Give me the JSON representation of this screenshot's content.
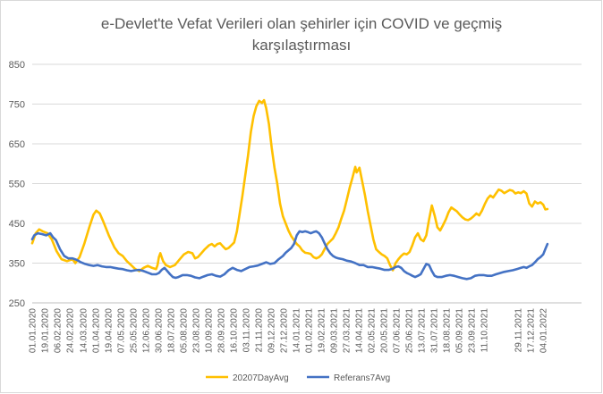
{
  "chart_data": {
    "type": "line",
    "title_line1": "e-Devlet'te Vefat Verileri olan şehirler için COVID ve geçmiş",
    "title_line2": "karşılaştırması",
    "xlabel": "",
    "ylabel": "",
    "ylim": [
      250,
      850
    ],
    "yticks": [
      "250",
      "350",
      "450",
      "550",
      "650",
      "750",
      "850"
    ],
    "x_start": "2020-01-01",
    "x_end": "2022-02-28",
    "xtick_labels": [
      "01.01.2020",
      "19.01.2020",
      "06.02.2020",
      "24.02.2020",
      "14.03.2020",
      "01.04.2020",
      "19.04.2020",
      "07.05.2020",
      "25.05.2020",
      "12.06.2020",
      "30.06.2020",
      "18.07.2020",
      "05.08.2020",
      "23.08.2020",
      "10.09.2020",
      "28.09.2020",
      "16.10.2020",
      "03.11.2020",
      "21.11.2020",
      "09.12.2020",
      "27.12.2020",
      "14.01.2021",
      "01.02.2021",
      "19.02.2021",
      "09.03.2021",
      "27.03.2021",
      "14.04.2021",
      "02.05.2021",
      "20.05.2021",
      "07.06.2021",
      "25.06.2021",
      "13.07.2021",
      "31.07.2021",
      "18.08.2021",
      "05.09.2021",
      "23.09.2021",
      "11.10.2021",
      "29.11.2021",
      "17.12.2021",
      "04.01.2022"
    ],
    "grid": true,
    "legend_position": "bottom-center",
    "series": [
      {
        "name": "20207DayAvg",
        "color": "#FFC000",
        "points": [
          [
            0,
            400
          ],
          [
            5,
            425
          ],
          [
            10,
            435
          ],
          [
            15,
            430
          ],
          [
            22,
            425
          ],
          [
            28,
            410
          ],
          [
            35,
            380
          ],
          [
            42,
            360
          ],
          [
            50,
            355
          ],
          [
            58,
            360
          ],
          [
            62,
            350
          ],
          [
            68,
            365
          ],
          [
            75,
            400
          ],
          [
            82,
            440
          ],
          [
            88,
            472
          ],
          [
            92,
            482
          ],
          [
            97,
            475
          ],
          [
            102,
            455
          ],
          [
            110,
            420
          ],
          [
            118,
            390
          ],
          [
            124,
            375
          ],
          [
            130,
            368
          ],
          [
            136,
            355
          ],
          [
            142,
            345
          ],
          [
            148,
            335
          ],
          [
            154,
            330
          ],
          [
            160,
            338
          ],
          [
            166,
            343
          ],
          [
            172,
            338
          ],
          [
            178,
            335
          ],
          [
            180,
            345
          ],
          [
            182,
            365
          ],
          [
            184,
            375
          ],
          [
            188,
            355
          ],
          [
            192,
            345
          ],
          [
            198,
            340
          ],
          [
            205,
            345
          ],
          [
            212,
            360
          ],
          [
            218,
            372
          ],
          [
            224,
            378
          ],
          [
            230,
            375
          ],
          [
            234,
            362
          ],
          [
            238,
            365
          ],
          [
            243,
            375
          ],
          [
            248,
            385
          ],
          [
            254,
            395
          ],
          [
            258,
            398
          ],
          [
            262,
            392
          ],
          [
            266,
            398
          ],
          [
            270,
            400
          ],
          [
            274,
            392
          ],
          [
            278,
            385
          ],
          [
            282,
            388
          ],
          [
            286,
            395
          ],
          [
            290,
            402
          ],
          [
            294,
            430
          ],
          [
            298,
            475
          ],
          [
            302,
            520
          ],
          [
            306,
            570
          ],
          [
            310,
            620
          ],
          [
            314,
            680
          ],
          [
            318,
            720
          ],
          [
            322,
            745
          ],
          [
            326,
            758
          ],
          [
            330,
            753
          ],
          [
            333,
            760
          ],
          [
            336,
            740
          ],
          [
            340,
            700
          ],
          [
            344,
            640
          ],
          [
            348,
            590
          ],
          [
            352,
            550
          ],
          [
            356,
            500
          ],
          [
            360,
            468
          ],
          [
            364,
            450
          ],
          [
            368,
            432
          ],
          [
            372,
            418
          ],
          [
            376,
            408
          ],
          [
            380,
            398
          ],
          [
            384,
            392
          ],
          [
            388,
            382
          ],
          [
            392,
            376
          ],
          [
            396,
            375
          ],
          [
            400,
            373
          ],
          [
            404,
            365
          ],
          [
            408,
            362
          ],
          [
            412,
            365
          ],
          [
            416,
            372
          ],
          [
            420,
            385
          ],
          [
            424,
            398
          ],
          [
            428,
            405
          ],
          [
            432,
            412
          ],
          [
            436,
            425
          ],
          [
            440,
            440
          ],
          [
            444,
            462
          ],
          [
            448,
            482
          ],
          [
            452,
            510
          ],
          [
            456,
            540
          ],
          [
            460,
            565
          ],
          [
            464,
            592
          ],
          [
            466,
            578
          ],
          [
            470,
            590
          ],
          [
            474,
            555
          ],
          [
            478,
            520
          ],
          [
            482,
            480
          ],
          [
            486,
            445
          ],
          [
            490,
            410
          ],
          [
            494,
            385
          ],
          [
            498,
            378
          ],
          [
            502,
            372
          ],
          [
            506,
            368
          ],
          [
            510,
            362
          ],
          [
            514,
            345
          ],
          [
            518,
            332
          ],
          [
            522,
            350
          ],
          [
            526,
            360
          ],
          [
            530,
            368
          ],
          [
            534,
            374
          ],
          [
            538,
            372
          ],
          [
            542,
            378
          ],
          [
            546,
            395
          ],
          [
            550,
            415
          ],
          [
            554,
            425
          ],
          [
            558,
            410
          ],
          [
            562,
            405
          ],
          [
            566,
            420
          ],
          [
            570,
            460
          ],
          [
            574,
            495
          ],
          [
            578,
            470
          ],
          [
            582,
            440
          ],
          [
            586,
            432
          ],
          [
            590,
            445
          ],
          [
            594,
            460
          ],
          [
            598,
            478
          ],
          [
            602,
            490
          ],
          [
            606,
            485
          ],
          [
            610,
            480
          ],
          [
            614,
            472
          ],
          [
            618,
            465
          ],
          [
            622,
            460
          ],
          [
            626,
            458
          ],
          [
            630,
            462
          ],
          [
            634,
            468
          ],
          [
            638,
            475
          ],
          [
            642,
            470
          ],
          [
            646,
            482
          ],
          [
            650,
            498
          ],
          [
            654,
            512
          ],
          [
            658,
            520
          ],
          [
            662,
            515
          ],
          [
            666,
            525
          ],
          [
            670,
            535
          ],
          [
            674,
            532
          ],
          [
            678,
            526
          ],
          [
            682,
            530
          ],
          [
            686,
            534
          ],
          [
            690,
            532
          ],
          [
            694,
            525
          ],
          [
            698,
            528
          ],
          [
            702,
            526
          ],
          [
            706,
            531
          ],
          [
            710,
            525
          ],
          [
            714,
            500
          ],
          [
            718,
            492
          ],
          [
            722,
            505
          ],
          [
            726,
            500
          ],
          [
            730,
            503
          ],
          [
            734,
            497
          ],
          [
            737,
            485
          ],
          [
            740,
            486
          ]
        ]
      },
      {
        "name": "Referans7Avg",
        "color": "#4472C4",
        "points": [
          [
            0,
            410
          ],
          [
            3,
            420
          ],
          [
            8,
            425
          ],
          [
            14,
            423
          ],
          [
            20,
            420
          ],
          [
            26,
            425
          ],
          [
            30,
            415
          ],
          [
            34,
            408
          ],
          [
            40,
            385
          ],
          [
            46,
            368
          ],
          [
            52,
            362
          ],
          [
            58,
            362
          ],
          [
            64,
            358
          ],
          [
            70,
            352
          ],
          [
            76,
            348
          ],
          [
            82,
            345
          ],
          [
            88,
            343
          ],
          [
            94,
            345
          ],
          [
            100,
            342
          ],
          [
            106,
            340
          ],
          [
            112,
            340
          ],
          [
            118,
            338
          ],
          [
            124,
            336
          ],
          [
            130,
            335
          ],
          [
            136,
            332
          ],
          [
            142,
            330
          ],
          [
            148,
            332
          ],
          [
            154,
            333
          ],
          [
            160,
            330
          ],
          [
            166,
            326
          ],
          [
            172,
            322
          ],
          [
            178,
            322
          ],
          [
            182,
            325
          ],
          [
            186,
            333
          ],
          [
            190,
            338
          ],
          [
            194,
            330
          ],
          [
            198,
            322
          ],
          [
            202,
            315
          ],
          [
            206,
            313
          ],
          [
            210,
            315
          ],
          [
            216,
            320
          ],
          [
            222,
            320
          ],
          [
            228,
            318
          ],
          [
            234,
            314
          ],
          [
            240,
            312
          ],
          [
            246,
            316
          ],
          [
            252,
            320
          ],
          [
            258,
            322
          ],
          [
            264,
            318
          ],
          [
            270,
            316
          ],
          [
            276,
            322
          ],
          [
            282,
            332
          ],
          [
            288,
            338
          ],
          [
            294,
            333
          ],
          [
            300,
            330
          ],
          [
            306,
            335
          ],
          [
            312,
            340
          ],
          [
            318,
            342
          ],
          [
            324,
            344
          ],
          [
            330,
            348
          ],
          [
            336,
            352
          ],
          [
            342,
            348
          ],
          [
            348,
            350
          ],
          [
            354,
            360
          ],
          [
            360,
            368
          ],
          [
            364,
            376
          ],
          [
            368,
            382
          ],
          [
            372,
            388
          ],
          [
            376,
            398
          ],
          [
            380,
            420
          ],
          [
            384,
            430
          ],
          [
            388,
            428
          ],
          [
            392,
            430
          ],
          [
            396,
            428
          ],
          [
            400,
            425
          ],
          [
            404,
            428
          ],
          [
            408,
            430
          ],
          [
            412,
            425
          ],
          [
            416,
            415
          ],
          [
            420,
            400
          ],
          [
            424,
            385
          ],
          [
            428,
            375
          ],
          [
            432,
            368
          ],
          [
            436,
            364
          ],
          [
            440,
            362
          ],
          [
            446,
            360
          ],
          [
            452,
            356
          ],
          [
            458,
            354
          ],
          [
            464,
            350
          ],
          [
            470,
            345
          ],
          [
            476,
            345
          ],
          [
            482,
            340
          ],
          [
            488,
            340
          ],
          [
            494,
            338
          ],
          [
            500,
            336
          ],
          [
            506,
            333
          ],
          [
            512,
            333
          ],
          [
            518,
            336
          ],
          [
            522,
            340
          ],
          [
            526,
            342
          ],
          [
            530,
            338
          ],
          [
            534,
            330
          ],
          [
            538,
            325
          ],
          [
            542,
            322
          ],
          [
            546,
            318
          ],
          [
            550,
            315
          ],
          [
            554,
            318
          ],
          [
            558,
            322
          ],
          [
            562,
            335
          ],
          [
            566,
            348
          ],
          [
            570,
            345
          ],
          [
            574,
            330
          ],
          [
            578,
            318
          ],
          [
            582,
            315
          ],
          [
            588,
            315
          ],
          [
            594,
            318
          ],
          [
            600,
            320
          ],
          [
            606,
            318
          ],
          [
            612,
            315
          ],
          [
            618,
            312
          ],
          [
            624,
            310
          ],
          [
            630,
            312
          ],
          [
            636,
            318
          ],
          [
            642,
            320
          ],
          [
            648,
            320
          ],
          [
            654,
            318
          ],
          [
            660,
            318
          ],
          [
            666,
            322
          ],
          [
            672,
            325
          ],
          [
            678,
            328
          ],
          [
            684,
            330
          ],
          [
            690,
            332
          ],
          [
            696,
            335
          ],
          [
            702,
            338
          ],
          [
            706,
            340
          ],
          [
            710,
            338
          ],
          [
            714,
            342
          ],
          [
            718,
            345
          ],
          [
            722,
            352
          ],
          [
            726,
            360
          ],
          [
            730,
            365
          ],
          [
            734,
            372
          ],
          [
            737,
            385
          ],
          [
            740,
            398
          ]
        ]
      }
    ]
  }
}
